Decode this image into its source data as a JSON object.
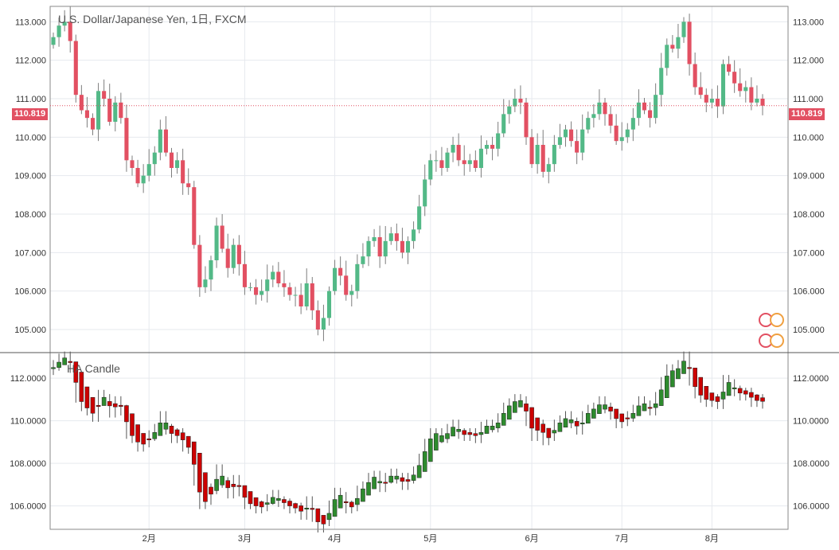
{
  "window": {
    "title": "U.S. Dollar/Japanese Yen, 1日, FXCM"
  },
  "last_price": "110.819",
  "indicator": {
    "name": "HA Candle"
  },
  "colors": {
    "up": "#53b987",
    "down": "#e25062",
    "ha_up": "#2e8b2e",
    "ha_down": "#cc0000",
    "grid": "#e6e9ee",
    "wick": "#7d7d7d"
  },
  "chart_data": [
    {
      "type": "candlestick",
      "title": "U.S. Dollar/Japanese Yen, 1日, FXCM",
      "ylim": [
        104.4,
        113.4
      ],
      "y_ticks": [
        "113.000",
        "112.000",
        "111.000",
        "110.000",
        "109.000",
        "108.000",
        "107.000",
        "106.000",
        "105.000"
      ],
      "x_ticks": [
        "2月",
        "3月",
        "4月",
        "5月",
        "6月",
        "7月",
        "8月"
      ],
      "last_value": 110.819,
      "series": [
        {
          "name": "price",
          "close": [
            112.6,
            112.9,
            113.0,
            112.5,
            111.1,
            110.7,
            110.5,
            110.2,
            111.2,
            111.0,
            110.4,
            110.9,
            110.5,
            109.4,
            109.2,
            108.8,
            109.0,
            109.3,
            109.6,
            110.2,
            109.6,
            109.2,
            109.4,
            108.8,
            108.7,
            107.2,
            106.1,
            106.3,
            106.8,
            107.7,
            107.1,
            106.6,
            107.2,
            106.7,
            106.1,
            106.1,
            105.9,
            106.0,
            106.3,
            106.5,
            106.2,
            106.1,
            105.9,
            105.9,
            105.6,
            106.2,
            105.5,
            105.0,
            105.3,
            106.0,
            106.6,
            106.4,
            105.9,
            106.0,
            106.7,
            106.9,
            107.3,
            107.4,
            106.9,
            107.3,
            107.5,
            107.3,
            107.0,
            107.3,
            107.6,
            108.2,
            108.9,
            109.4,
            109.4,
            109.2,
            109.6,
            109.8,
            109.4,
            109.3,
            109.4,
            109.2,
            109.7,
            109.8,
            109.7,
            110.1,
            110.6,
            110.8,
            111.0,
            110.9,
            110.0,
            109.3,
            109.8,
            109.1,
            109.3,
            109.8,
            110.0,
            110.2,
            109.9,
            109.6,
            110.2,
            110.5,
            110.6,
            110.9,
            110.6,
            110.3,
            109.9,
            110.0,
            110.2,
            110.5,
            110.9,
            110.7,
            110.5,
            111.1,
            111.8,
            112.4,
            112.3,
            112.6,
            113.0,
            111.9,
            111.3,
            111.1,
            110.9,
            111.0,
            110.8,
            111.9,
            111.7,
            111.4,
            111.2,
            111.3,
            110.9,
            111.0,
            110.819
          ]
        }
      ]
    },
    {
      "type": "candlestick",
      "title": "HA Candle",
      "ylim": [
        104.9,
        113.2
      ],
      "y_ticks": [
        "112.0000",
        "110.0000",
        "108.0000",
        "106.0000"
      ],
      "x_ticks": [
        "2月",
        "3月",
        "4月",
        "5月",
        "6月",
        "7月",
        "8月"
      ]
    }
  ]
}
